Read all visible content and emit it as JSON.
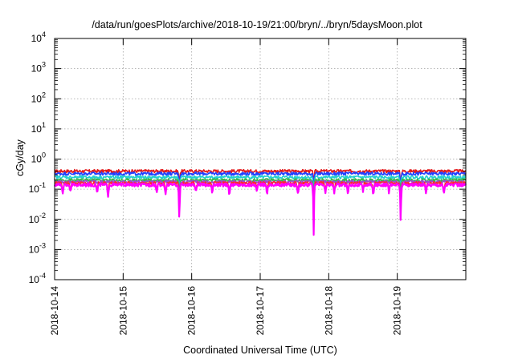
{
  "chart_data": {
    "type": "line",
    "title": "/data/run/goesPlots/archive/2018-10-19/21:00/bryn/../bryn/5daysMoon.plot",
    "xlabel": "Coordinated Universal Time (UTC)",
    "ylabel": "cGy/day",
    "y_scale": "log",
    "ylim": [
      0.0001,
      10000
    ],
    "y_ticks": [
      {
        "value": 0.0001,
        "base": "10",
        "exp": "-4"
      },
      {
        "value": 0.001,
        "base": "10",
        "exp": "-3"
      },
      {
        "value": 0.01,
        "base": "10",
        "exp": "-2"
      },
      {
        "value": 0.1,
        "base": "10",
        "exp": "-1"
      },
      {
        "value": 1,
        "base": "10",
        "exp": "0"
      },
      {
        "value": 10,
        "base": "10",
        "exp": "1"
      },
      {
        "value": 100,
        "base": "10",
        "exp": "2"
      },
      {
        "value": 1000,
        "base": "10",
        "exp": "3"
      },
      {
        "value": 10000,
        "base": "10",
        "exp": "4"
      }
    ],
    "xlim": [
      "2018-10-14",
      "2018-10-20"
    ],
    "x_ticks": [
      "2018-10-14",
      "2018-10-15",
      "2018-10-16",
      "2018-10-17",
      "2018-10-18",
      "2018-10-19"
    ],
    "grid": true,
    "series": [
      {
        "color": "#e41a1c",
        "base": 0.4
      },
      {
        "color": "#2040ff",
        "base": 0.33
      },
      {
        "color": "#22d0d0",
        "base": 0.25
      },
      {
        "color": "#38b848",
        "base": 0.2
      },
      {
        "color": "#9a4ad0",
        "base": 0.175
      },
      {
        "color": "#ff2a2a",
        "base": 0.16
      },
      {
        "color": "#ff00ff",
        "base": 0.14
      }
    ],
    "dips": [
      {
        "day": 0.12,
        "depth": 0.5
      },
      {
        "day": 0.23,
        "depth": 0.6
      },
      {
        "day": 0.62,
        "depth": 0.55
      },
      {
        "day": 0.78,
        "depth": 0.45
      },
      {
        "day": 1.49,
        "depth": 0.55
      },
      {
        "day": 1.62,
        "depth": 0.5
      },
      {
        "day": 1.82,
        "depth": 0.04
      },
      {
        "day": 2.06,
        "depth": 0.6
      },
      {
        "day": 2.3,
        "depth": 0.55
      },
      {
        "day": 2.55,
        "depth": 0.5
      },
      {
        "day": 2.95,
        "depth": 0.6
      },
      {
        "day": 3.1,
        "depth": 0.55
      },
      {
        "day": 3.55,
        "depth": 0.5
      },
      {
        "day": 3.78,
        "depth": 0.02
      },
      {
        "day": 3.95,
        "depth": 0.5
      },
      {
        "day": 4.08,
        "depth": 0.55
      },
      {
        "day": 4.28,
        "depth": 0.5
      },
      {
        "day": 4.5,
        "depth": 0.6
      },
      {
        "day": 4.65,
        "depth": 0.45
      },
      {
        "day": 4.88,
        "depth": 0.55
      },
      {
        "day": 5.05,
        "depth": 0.05
      },
      {
        "day": 5.42,
        "depth": 0.55
      },
      {
        "day": 5.68,
        "depth": 0.5
      }
    ]
  }
}
